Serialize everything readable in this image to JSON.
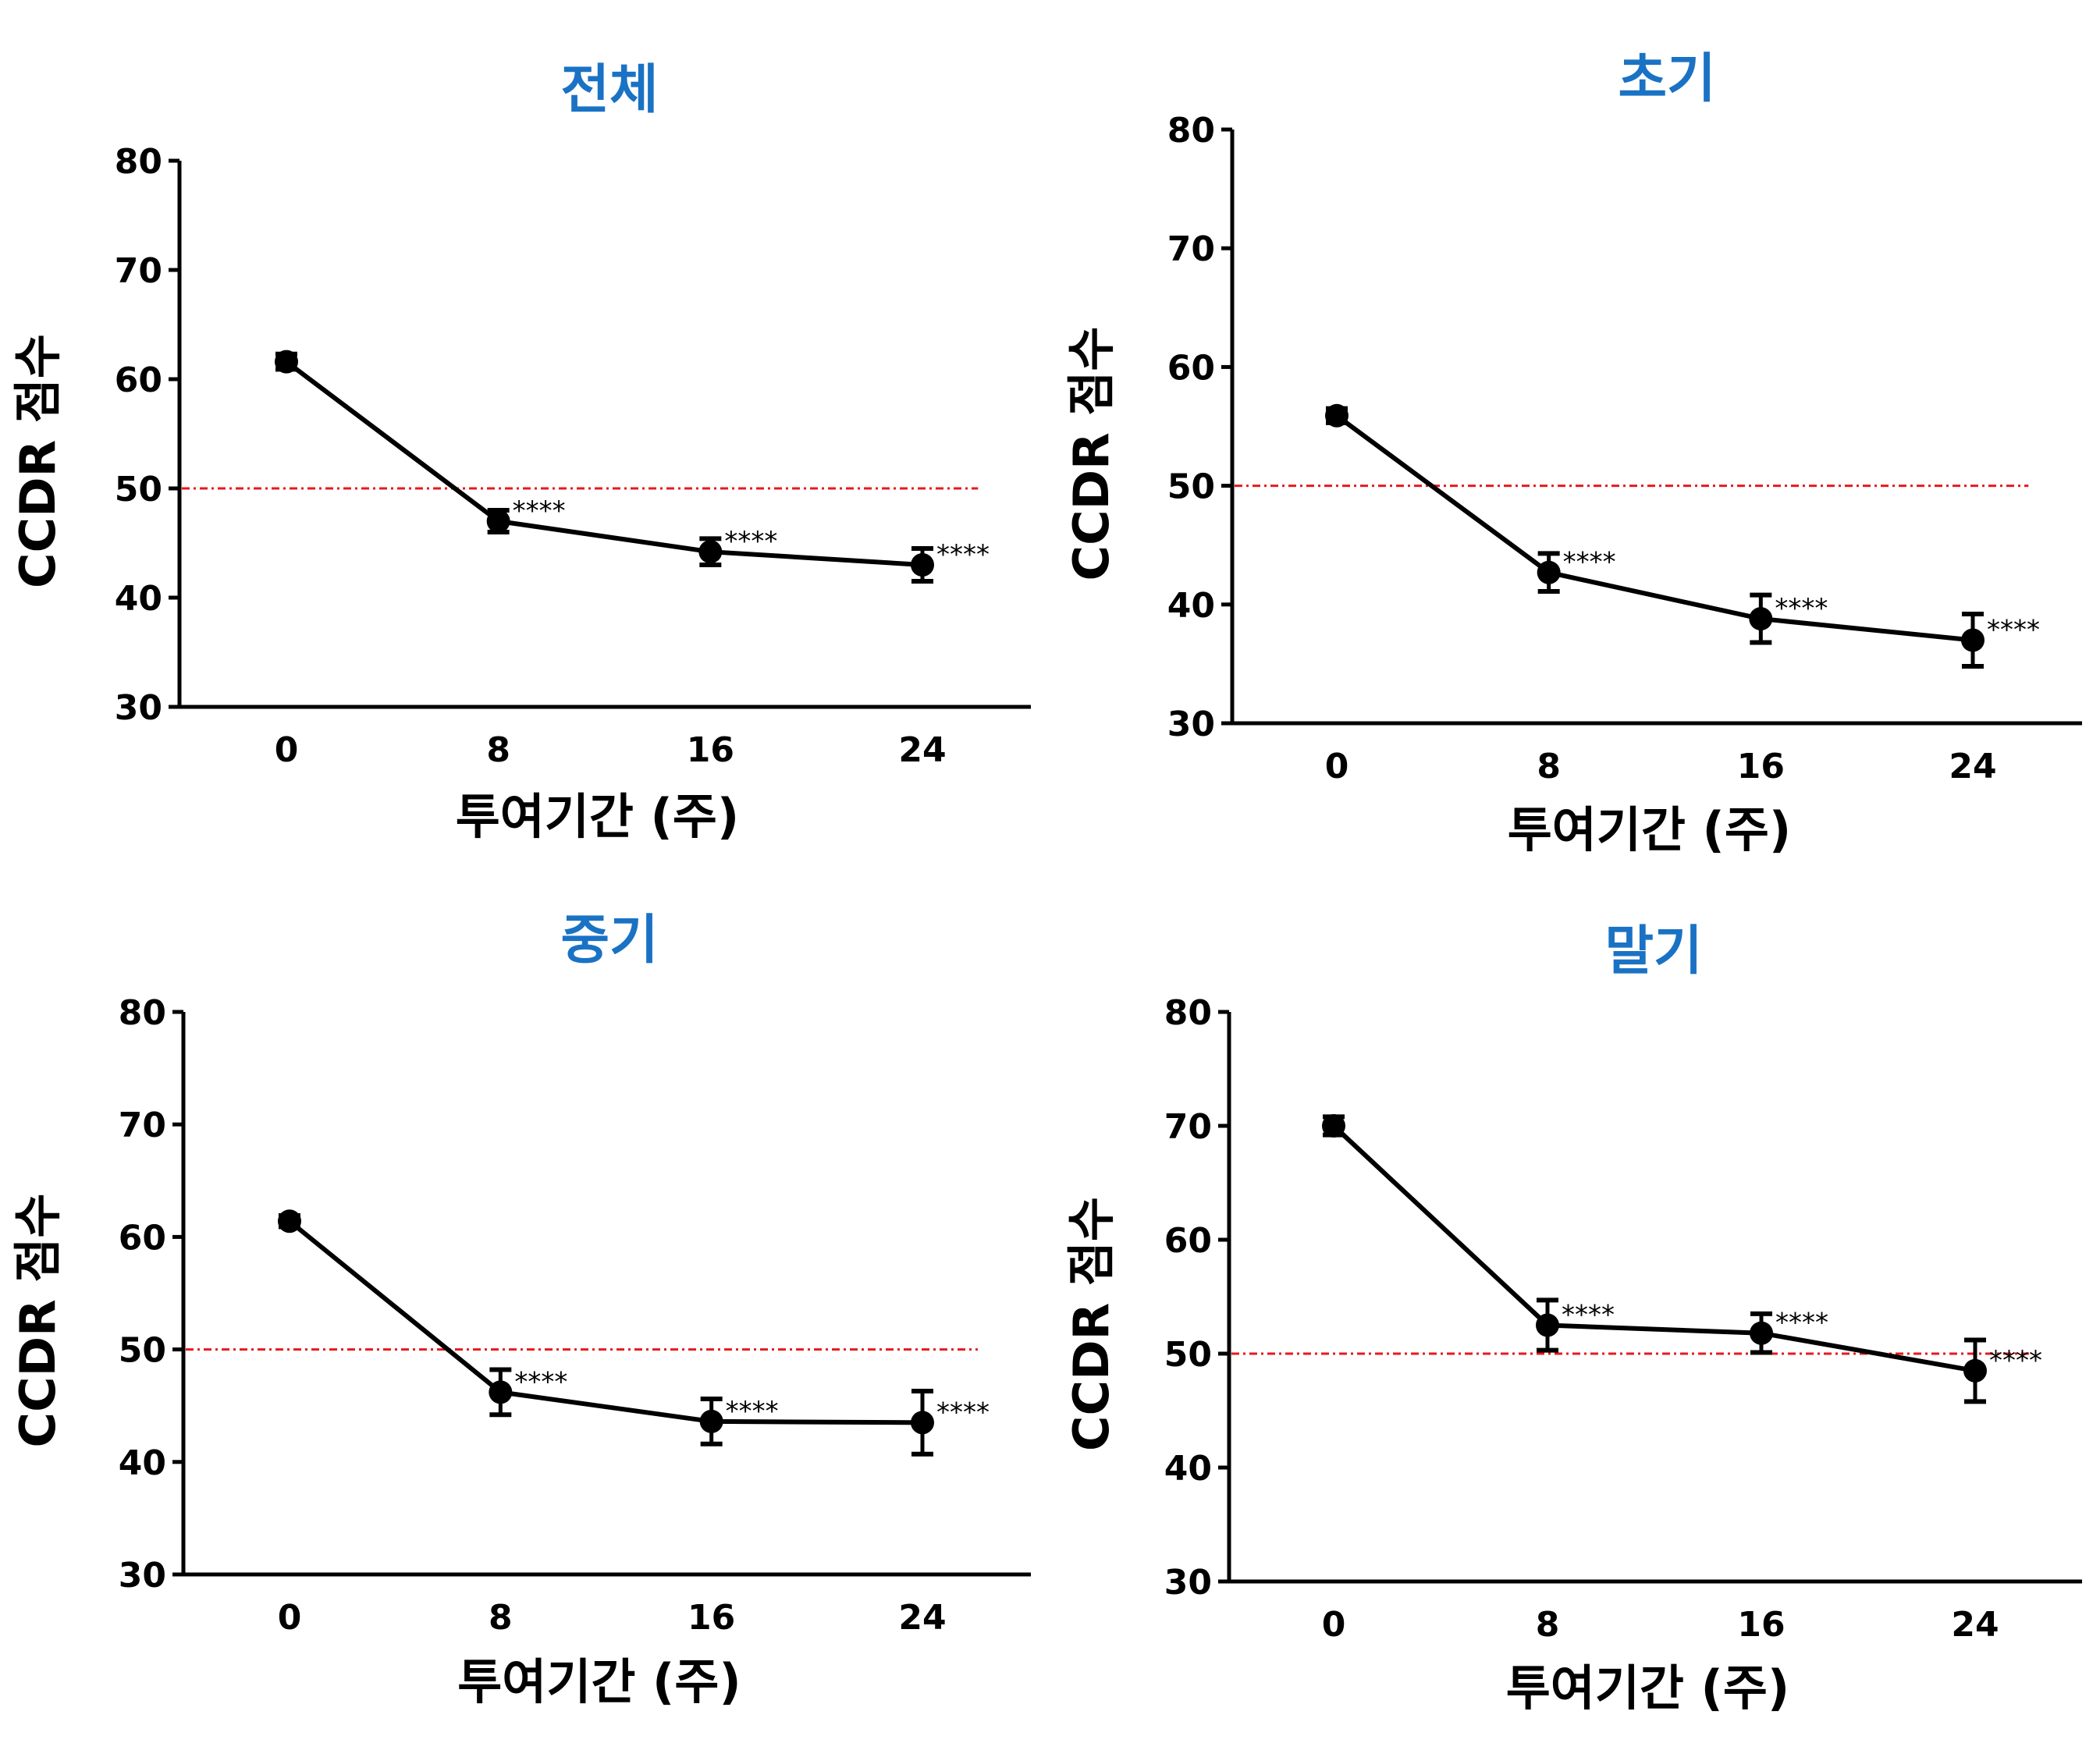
{
  "chart_data": [
    {
      "type": "line",
      "title": "전체",
      "xlabel": "투여기간 (주)",
      "ylabel": "CCDR 점수",
      "x": [
        0,
        8,
        16,
        24
      ],
      "values": [
        61.6,
        47.0,
        44.2,
        43.0
      ],
      "error": [
        0.7,
        1.0,
        1.2,
        1.5
      ],
      "annotations": [
        "",
        "****",
        "****",
        "****"
      ],
      "reference_line": 50,
      "xticks": [
        "0",
        "8",
        "16",
        "24"
      ],
      "yticks": [
        "30",
        "40",
        "50",
        "60",
        "70",
        "80"
      ],
      "ylim": [
        30,
        80
      ],
      "xlim": [
        -4,
        28
      ]
    },
    {
      "type": "line",
      "title": "초기",
      "xlabel": "투여기간 (주)",
      "ylabel": "CCDR 점수",
      "x": [
        0,
        8,
        16,
        24
      ],
      "values": [
        55.9,
        42.7,
        38.8,
        37.0
      ],
      "error": [
        0.6,
        1.6,
        2.0,
        2.2
      ],
      "annotations": [
        "",
        "****",
        "****",
        "****"
      ],
      "reference_line": 50,
      "xticks": [
        "0",
        "8",
        "16",
        "24"
      ],
      "yticks": [
        "30",
        "40",
        "50",
        "60",
        "70",
        "80"
      ],
      "ylim": [
        30,
        80
      ],
      "xlim": [
        -4,
        28
      ]
    },
    {
      "type": "line",
      "title": "중기",
      "xlabel": "투여기간 (주)",
      "ylabel": "CCDR 점수",
      "x": [
        0,
        8,
        16,
        24
      ],
      "values": [
        61.4,
        46.2,
        43.6,
        43.5
      ],
      "error": [
        0.5,
        2.0,
        2.0,
        2.8
      ],
      "annotations": [
        "",
        "****",
        "****",
        "****"
      ],
      "reference_line": 50,
      "xticks": [
        "0",
        "8",
        "16",
        "24"
      ],
      "yticks": [
        "30",
        "40",
        "50",
        "60",
        "70",
        "80"
      ],
      "ylim": [
        30,
        80
      ],
      "xlim": [
        -4,
        28
      ]
    },
    {
      "type": "line",
      "title": "말기",
      "xlabel": "투여기간 (주)",
      "ylabel": "CCDR 점수",
      "x": [
        0,
        8,
        16,
        24
      ],
      "values": [
        70.0,
        52.5,
        51.8,
        48.5
      ],
      "error": [
        0.8,
        2.2,
        1.7,
        2.7
      ],
      "annotations": [
        "",
        "****",
        "****",
        "****"
      ],
      "reference_line": 50,
      "xticks": [
        "0",
        "8",
        "16",
        "24"
      ],
      "yticks": [
        "30",
        "40",
        "50",
        "60",
        "70",
        "80"
      ],
      "ylim": [
        30,
        80
      ],
      "xlim": [
        -4,
        28
      ]
    }
  ],
  "colors": {
    "title": "#1a72c4",
    "line": "#000000",
    "reference_line": "#e8191e"
  },
  "grid": false
}
